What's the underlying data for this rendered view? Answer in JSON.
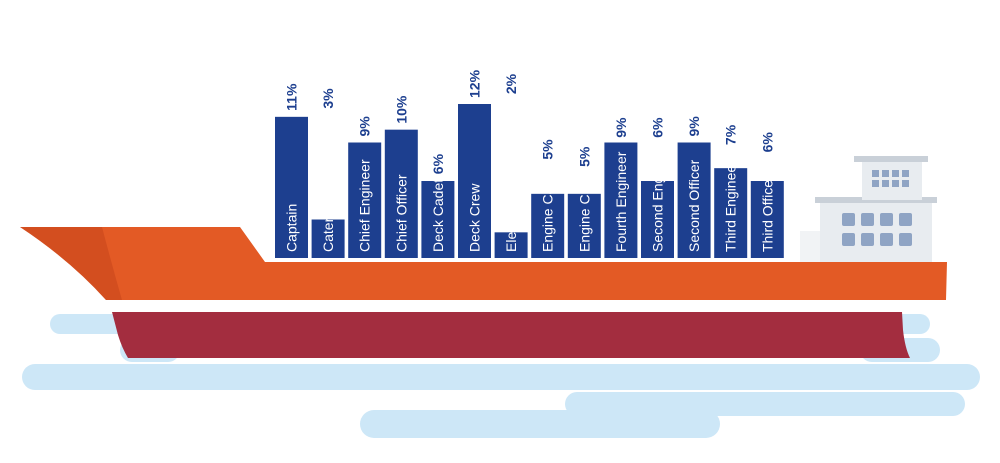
{
  "chart_data": {
    "type": "bar",
    "categories": [
      "Captain",
      "Catering Department",
      "Chief Engineer",
      "Chief Officer",
      "Deck Cadet",
      "Deck Crew",
      "Electrical Department",
      "Engine Cadet",
      "Engine Crew",
      "Fourth Engineer",
      "Second Engineer",
      "Second Officer",
      "Third Engineer",
      "Third Officer"
    ],
    "values": [
      11,
      3,
      9,
      10,
      6,
      12,
      2,
      5,
      5,
      9,
      6,
      9,
      7,
      6
    ],
    "value_labels": [
      "11%",
      "3%",
      "9%",
      "10%",
      "6%",
      "12%",
      "2%",
      "5%",
      "5%",
      "9%",
      "6%",
      "9%",
      "7%",
      "6%"
    ],
    "ylim": [
      0,
      12
    ],
    "grid": false,
    "legend": "none",
    "colors": {
      "container": "#1d3f8f",
      "label_text": "#1d3f8f",
      "hull_orange": "#e35a25",
      "hull_orange_shade": "#cf4a1f",
      "hull_red": "#a32d3f",
      "water": "#cde7f7",
      "bridge": "#e8ecf0",
      "window": "#8fa4c4"
    }
  }
}
